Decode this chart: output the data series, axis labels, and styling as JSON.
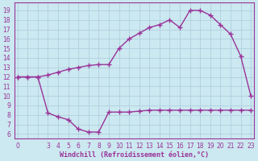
{
  "xlabel": "Windchill (Refroidissement éolien,°C)",
  "line1_x": [
    0,
    1,
    2,
    3,
    4,
    5,
    6,
    7,
    8,
    9,
    10,
    11,
    12,
    13,
    14,
    15,
    16,
    17,
    18,
    19,
    20,
    21,
    22,
    23
  ],
  "line1_y": [
    12.0,
    12.0,
    12.0,
    12.2,
    12.5,
    12.8,
    13.0,
    13.2,
    13.3,
    13.3,
    15.0,
    16.0,
    16.6,
    17.2,
    17.5,
    18.0,
    17.2,
    19.0,
    19.0,
    18.5,
    17.5,
    16.5,
    14.2,
    10.0
  ],
  "line2_x": [
    0,
    1,
    2,
    3,
    4,
    5,
    6,
    7,
    8,
    9,
    10,
    11,
    12,
    13,
    14,
    15,
    16,
    17,
    18,
    19,
    20,
    21,
    22,
    23
  ],
  "line2_y": [
    12.0,
    12.0,
    12.0,
    8.2,
    7.8,
    7.5,
    6.5,
    6.2,
    6.2,
    8.3,
    8.3,
    8.3,
    8.4,
    8.5,
    8.5,
    8.5,
    8.5,
    8.5,
    8.5,
    8.5,
    8.5,
    8.5,
    8.5,
    8.5
  ],
  "x_show_ticks": [
    0,
    3,
    4,
    5,
    6,
    7,
    8,
    9,
    10,
    11,
    12,
    13,
    14,
    15,
    16,
    17,
    18,
    19,
    20,
    21,
    22,
    23
  ],
  "line_color": "#993399",
  "bg_color": "#cce8f0",
  "grid_color": "#aaccdd",
  "ylim": [
    5.5,
    19.8
  ],
  "xlim": [
    -0.3,
    23.3
  ],
  "yticks": [
    6,
    7,
    8,
    9,
    10,
    11,
    12,
    13,
    14,
    15,
    16,
    17,
    18,
    19
  ],
  "marker": "+",
  "markersize": 5,
  "linewidth": 1.0,
  "tick_fontsize": 5.5,
  "xlabel_fontsize": 6.0
}
